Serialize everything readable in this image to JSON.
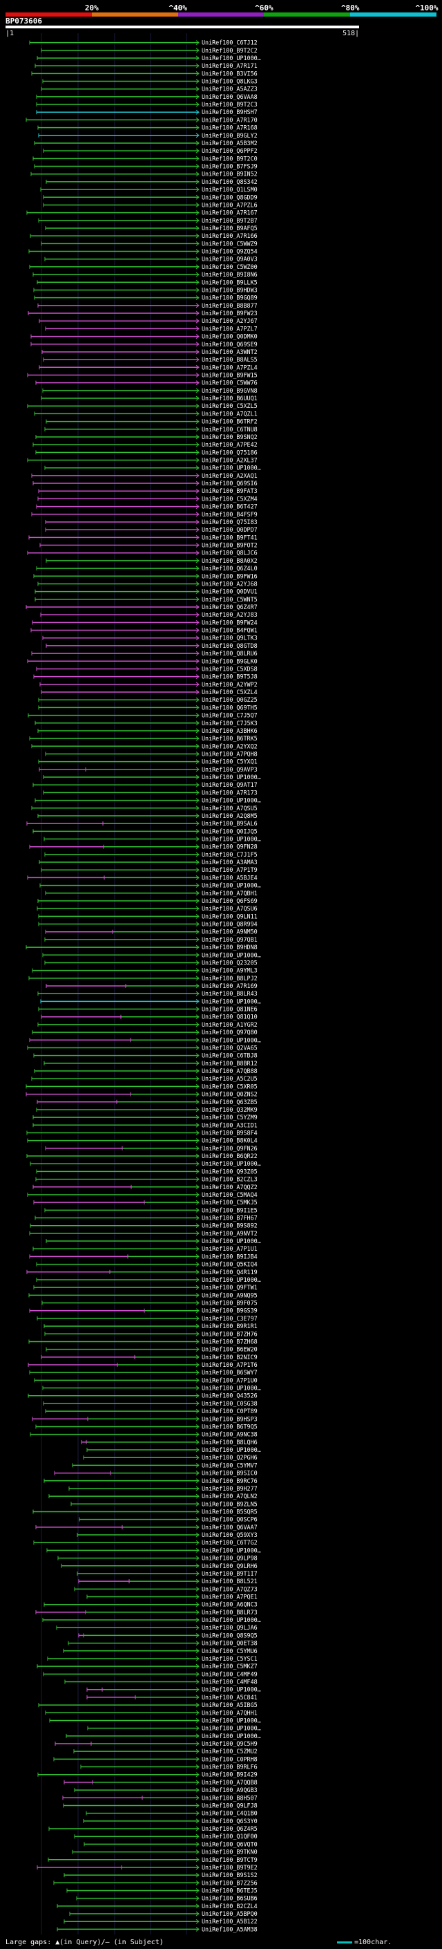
{
  "scale": {
    "labels": [
      "20%",
      "^40%",
      "^60%",
      "^80%",
      "^100%"
    ],
    "colors": [
      "#e01010",
      "#e07010",
      "#9020c0",
      "#10a010",
      "#10c0d0"
    ]
  },
  "query": {
    "title": "BP073606",
    "start": "|1",
    "end": "518|"
  },
  "hit_labels": [
    "UniRef100_C6TJ12",
    "UniRef100_B9T2C2",
    "UniRef100_UP1000…",
    "UniRef100_A7R171",
    "UniRef100_B3VI56",
    "UniRef100_Q8LKG3",
    "UniRef100_A5AZZ3",
    "UniRef100_Q6VAA8",
    "UniRef100_B9T2C3",
    "UniRef100_B9HSH7",
    "UniRef100_A7R170",
    "UniRef100_A7R168",
    "UniRef100_B9GLY2",
    "UniRef100_A5B3M2",
    "UniRef100_Q6PPF2",
    "UniRef100_B9T2C0",
    "UniRef100_B7FSJ9",
    "UniRef100_B9IN52",
    "UniRef100_Q8S342",
    "UniRef100_Q1LSM0",
    "UniRef100_Q8GDD9",
    "UniRef100_A7PZL6",
    "UniRef100_A7R167",
    "UniRef100_B9T2B7",
    "UniRef100_B9AFQ5",
    "UniRef100_A7R166",
    "UniRef100_C5WWZ9",
    "UniRef100_Q9ZQ54",
    "UniRef100_Q9A0V3",
    "UniRef100_C5WZ00",
    "UniRef100_B9I8N6",
    "UniRef100_B9LLK5",
    "UniRef100_B9HDW3",
    "UniRef100_B9GQ89",
    "UniRef100_B8B877",
    "UniRef100_B9FW23",
    "UniRef100_A2YJ67",
    "UniRef100_A7PZL7",
    "UniRef100_Q0DMK0",
    "UniRef100_Q69SE9",
    "UniRef100_A3WNT2",
    "UniRef100_B8ALS5",
    "UniRef100_A7PZL4",
    "UniRef100_B9FW15",
    "UniRef100_C5WW76",
    "UniRef100_B9GVN8",
    "UniRef100_B6UUQ1",
    "UniRef100_C5XZL5",
    "UniRef100_A7QZL1",
    "UniRef100_B6TRF2",
    "UniRef100_C6TNU8",
    "UniRef100_B9SNQ2",
    "UniRef100_A7PE42",
    "UniRef100_Q75186",
    "UniRef100_A2XL37",
    "UniRef100_UP1000…",
    "UniRef100_A2XAQ1",
    "UniRef100_Q69SI6",
    "UniRef100_B9FAT3",
    "UniRef100_C5XZM4",
    "UniRef100_B6T427",
    "UniRef100_B4FSF9",
    "UniRef100_Q75I83",
    "UniRef100_Q0DPD7",
    "UniRef100_B9FT41",
    "UniRef100_B9FOT2",
    "UniRef100_Q8LJC6",
    "UniRef100_B8A0X2",
    "UniRef100_Q6Z4L0",
    "UniRef100_B9FW16",
    "UniRef100_A2YJ68",
    "UniRef100_Q0DVU1",
    "UniRef100_C5WNT5",
    "UniRef100_Q6Z4R7",
    "UniRef100_A2YJ83",
    "UniRef100_B9FW24",
    "UniRef100_B4FQW1",
    "UniRef100_Q9LTK3",
    "UniRef100_Q8GTD8",
    "UniRef100_Q8LRU6",
    "UniRef100_B9GLK0",
    "UniRef100_C5XDS8",
    "UniRef100_B9T5J8",
    "UniRef100_A2YWP2",
    "UniRef100_C5XZL4",
    "UniRef100_Q0GZ25",
    "UniRef100_Q69TH5",
    "UniRef100_C7J5Q7",
    "UniRef100_C7J5K3",
    "UniRef100_A3BHK6",
    "UniRef100_B6TRK5",
    "UniRef100_A2YXQ2",
    "UniRef100_A7PQH8",
    "UniRef100_C5YXQ1",
    "UniRef100_Q9AVP3",
    "UniRef100_UP1000…",
    "UniRef100_Q9AT17",
    "UniRef100_A7R173",
    "UniRef100_UP1000…",
    "UniRef100_A7QSU5",
    "UniRef100_A2Q8M5",
    "UniRef100_B9SAL6",
    "UniRef100_Q0IJQ5",
    "UniRef100_UP1000…",
    "UniRef100_Q9FN28",
    "UniRef100_C7J1F5",
    "UniRef100_A3AMA3",
    "UniRef100_A7P1T9",
    "UniRef100_A5BJE4",
    "UniRef100_UP1000…",
    "UniRef100_A7QBH1",
    "UniRef100_Q6FS69",
    "UniRef100_A7QSU6",
    "UniRef100_Q9LN11",
    "UniRef100_Q8R994",
    "UniRef100_A9NM50",
    "UniRef100_Q97QB1",
    "UniRef100_B9HDN8",
    "UniRef100_UP1000…",
    "UniRef100_Q23205",
    "UniRef100_A9YML3",
    "UniRef100_B8LPJ2",
    "UniRef100_A7R169",
    "UniRef100_B8LR43",
    "UniRef100_UP1000…",
    "UniRef100_Q81NE6",
    "UniRef100_Q81Q10",
    "UniRef100_A1YGR2",
    "UniRef100_Q97Q80",
    "UniRef100_UP1000…",
    "UniRef100_Q2VA65",
    "UniRef100_C6TBJ8",
    "UniRef100_B8BR12",
    "UniRef100_A7QB88",
    "UniRef100_A5C2U5",
    "UniRef100_C5XR05",
    "UniRef100_Q0ZNS2",
    "UniRef100_Q63ZB5",
    "UniRef100_Q32MK9",
    "UniRef100_C5YZM9",
    "UniRef100_A3CID1",
    "UniRef100_B9S8F4",
    "UniRef100_B8K0L4",
    "UniRef100_Q9FN26",
    "UniRef100_B6QR22",
    "UniRef100_UP1000…",
    "UniRef100_Q93Z05",
    "UniRef100_B2CZL3",
    "UniRef100_A7QQZ2",
    "UniRef100_C5MAQ4",
    "UniRef100_C5MKJ5",
    "UniRef100_B9I1E5",
    "UniRef100_B7FH67",
    "UniRef100_B9S892",
    "UniRef100_A9NVT2",
    "UniRef100_UP1000…",
    "UniRef100_A7P1U1",
    "UniRef100_B9IJB4",
    "UniRef100_Q5KIQ4",
    "UniRef100_Q4R119",
    "UniRef100_UP1000…",
    "UniRef100_Q9FTW1",
    "UniRef100_A9NQ95",
    "UniRef100_B9F075",
    "UniRef100_B9GS39",
    "UniRef100_C3E797",
    "UniRef100_B9R1R1",
    "UniRef100_B7ZH76",
    "UniRef100_B7ZH68",
    "UniRef100_B6EW20",
    "UniRef100_B2NIC9",
    "UniRef100_A7P1T6",
    "UniRef100_B6SWY7",
    "UniRef100_A7P1U0",
    "UniRef100_UP1000…",
    "UniRef100_Q43526",
    "UniRef100_C0SG38",
    "UniRef100_C0PT89",
    "UniRef100_B9HSP3",
    "UniRef100_B6T9Q5",
    "UniRef100_A9NC38",
    "UniRef100_B8LQH6",
    "UniRef100_UP1000…",
    "UniRef100_Q2PGH6",
    "UniRef100_C5YMV7",
    "UniRef100_B9SIC0",
    "UniRef100_B9RC76",
    "UniRef100_B9H277",
    "UniRef100_A7QLN2",
    "UniRef100_B9ZLN5",
    "UniRef100_B5SQR5",
    "UniRef100_Q0SCP6",
    "UniRef100_Q6VAA7",
    "UniRef100_Q59XY3",
    "UniRef100_C6T7G2",
    "UniRef100_UP1000…",
    "UniRef100_Q9LP98",
    "UniRef100_Q9LRH6",
    "UniRef100_B9T1I7",
    "UniRef100_B8L521",
    "UniRef100_A7QZ73",
    "UniRef100_A7PQE1",
    "UniRef100_A6QNC3",
    "UniRef100_B8LR73",
    "UniRef100_UP1000…",
    "UniRef100_Q9LJA6",
    "UniRef100_Q8S9Q5",
    "UniRef100_Q0ET38",
    "UniRef100_C5YMU6",
    "UniRef100_C5YSC1",
    "UniRef100_C5MKZ7",
    "UniRef100_C4MF49",
    "UniRef100_C4MF48",
    "UniRef100_UP1000…",
    "UniRef100_A5C841",
    "UniRef100_A5IBG5",
    "UniRef100_A7QHH1",
    "UniRef100_UP1000…",
    "UniRef100_UP1000…",
    "UniRef100_UP1000…",
    "UniRef100_Q9C5H9",
    "UniRef100_C5ZMU2",
    "UniRef100_C0PRH8",
    "UniRef100_B9RLF6",
    "UniRef100_B9I429",
    "UniRef100_A7QQB8",
    "UniRef100_A9QGB3",
    "UniRef100_B8H507",
    "UniRef100_Q9LFJ8",
    "UniRef100_C4Q1B0",
    "UniRef100_Q6S3Y0",
    "UniRef100_Q6Z4R5",
    "UniRef100_Q1QF00",
    "UniRef100_Q6VQT0",
    "UniRef100_B9TKN0",
    "UniRef100_B9TCT9",
    "UniRef100_B9T9E2",
    "UniRef100_B9S1S2",
    "UniRef100_B7Z256",
    "UniRef100_B6TEJ5",
    "UniRef100_B6SUB6",
    "UniRef100_B2CZL4",
    "UniRef100_A5BPQ0",
    "UniRef100_A5B122",
    "UniRef100_A5AM38"
  ],
  "footer": {
    "left": "Large gaps: ▲(in Query)/– (in Subject)",
    "right": "=100char."
  }
}
